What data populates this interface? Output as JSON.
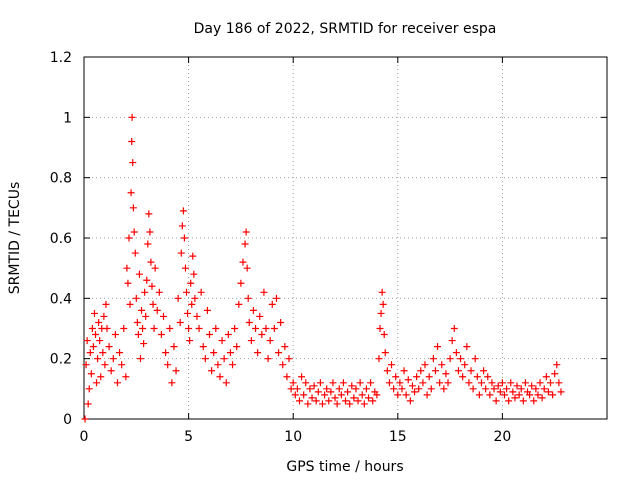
{
  "chart_data": {
    "type": "scatter",
    "title": "Day 186 of 2022, SRMTID for receiver espa",
    "xlabel": "GPS time / hours",
    "ylabel": "SRMTID / TECUs",
    "xlim": [
      0,
      25
    ],
    "ylim": [
      0,
      1.2
    ],
    "x_ticks": [
      0,
      5,
      10,
      15,
      20
    ],
    "x_tick_labels": [
      "0",
      "5",
      "10",
      "15",
      "20"
    ],
    "y_ticks": [
      0,
      0.2,
      0.4,
      0.6,
      0.8,
      1.0,
      1.2
    ],
    "y_tick_labels": [
      "0",
      "0.2",
      "0.4",
      "0.6",
      "0.8",
      "1",
      "1.2"
    ],
    "grid": true,
    "marker": "+",
    "series_color": "#ff0000",
    "series": [
      {
        "name": "SRMTID",
        "points": [
          [
            0.05,
            0.0
          ],
          [
            0.1,
            0.18
          ],
          [
            0.15,
            0.26
          ],
          [
            0.2,
            0.05
          ],
          [
            0.25,
            0.1
          ],
          [
            0.3,
            0.22
          ],
          [
            0.35,
            0.15
          ],
          [
            0.4,
            0.3
          ],
          [
            0.45,
            0.24
          ],
          [
            0.5,
            0.35
          ],
          [
            0.55,
            0.28
          ],
          [
            0.6,
            0.12
          ],
          [
            0.65,
            0.2
          ],
          [
            0.7,
            0.32
          ],
          [
            0.75,
            0.26
          ],
          [
            0.8,
            0.14
          ],
          [
            0.85,
            0.3
          ],
          [
            0.9,
            0.22
          ],
          [
            0.95,
            0.34
          ],
          [
            1.0,
            0.18
          ],
          [
            1.05,
            0.38
          ],
          [
            1.1,
            0.3
          ],
          [
            1.2,
            0.24
          ],
          [
            1.3,
            0.16
          ],
          [
            1.4,
            0.2
          ],
          [
            1.5,
            0.28
          ],
          [
            1.6,
            0.12
          ],
          [
            1.7,
            0.22
          ],
          [
            1.8,
            0.18
          ],
          [
            1.9,
            0.3
          ],
          [
            2.0,
            0.14
          ],
          [
            2.05,
            0.5
          ],
          [
            2.1,
            0.45
          ],
          [
            2.15,
            0.6
          ],
          [
            2.2,
            0.38
          ],
          [
            2.25,
            0.75
          ],
          [
            2.28,
            0.92
          ],
          [
            2.3,
            1.0
          ],
          [
            2.33,
            0.85
          ],
          [
            2.36,
            0.7
          ],
          [
            2.4,
            0.62
          ],
          [
            2.45,
            0.55
          ],
          [
            2.5,
            0.4
          ],
          [
            2.55,
            0.32
          ],
          [
            2.6,
            0.28
          ],
          [
            2.65,
            0.48
          ],
          [
            2.7,
            0.2
          ],
          [
            2.75,
            0.36
          ],
          [
            2.8,
            0.3
          ],
          [
            2.85,
            0.25
          ],
          [
            2.9,
            0.42
          ],
          [
            2.95,
            0.34
          ],
          [
            3.0,
            0.46
          ],
          [
            3.05,
            0.58
          ],
          [
            3.1,
            0.68
          ],
          [
            3.15,
            0.62
          ],
          [
            3.2,
            0.52
          ],
          [
            3.25,
            0.44
          ],
          [
            3.3,
            0.38
          ],
          [
            3.35,
            0.3
          ],
          [
            3.4,
            0.5
          ],
          [
            3.5,
            0.36
          ],
          [
            3.6,
            0.42
          ],
          [
            3.7,
            0.28
          ],
          [
            3.8,
            0.34
          ],
          [
            3.9,
            0.22
          ],
          [
            4.0,
            0.18
          ],
          [
            4.1,
            0.3
          ],
          [
            4.2,
            0.12
          ],
          [
            4.3,
            0.24
          ],
          [
            4.4,
            0.16
          ],
          [
            4.5,
            0.4
          ],
          [
            4.6,
            0.32
          ],
          [
            4.65,
            0.55
          ],
          [
            4.7,
            0.64
          ],
          [
            4.75,
            0.69
          ],
          [
            4.8,
            0.6
          ],
          [
            4.85,
            0.5
          ],
          [
            4.9,
            0.42
          ],
          [
            4.95,
            0.35
          ],
          [
            5.0,
            0.3
          ],
          [
            5.05,
            0.26
          ],
          [
            5.1,
            0.45
          ],
          [
            5.15,
            0.38
          ],
          [
            5.2,
            0.54
          ],
          [
            5.25,
            0.48
          ],
          [
            5.3,
            0.4
          ],
          [
            5.4,
            0.34
          ],
          [
            5.5,
            0.3
          ],
          [
            5.6,
            0.42
          ],
          [
            5.7,
            0.24
          ],
          [
            5.8,
            0.2
          ],
          [
            5.9,
            0.36
          ],
          [
            6.0,
            0.28
          ],
          [
            6.1,
            0.16
          ],
          [
            6.2,
            0.22
          ],
          [
            6.3,
            0.3
          ],
          [
            6.4,
            0.18
          ],
          [
            6.5,
            0.14
          ],
          [
            6.6,
            0.26
          ],
          [
            6.7,
            0.2
          ],
          [
            6.8,
            0.12
          ],
          [
            6.9,
            0.28
          ],
          [
            7.0,
            0.22
          ],
          [
            7.1,
            0.18
          ],
          [
            7.2,
            0.3
          ],
          [
            7.3,
            0.24
          ],
          [
            7.4,
            0.38
          ],
          [
            7.5,
            0.45
          ],
          [
            7.6,
            0.52
          ],
          [
            7.7,
            0.58
          ],
          [
            7.75,
            0.62
          ],
          [
            7.8,
            0.5
          ],
          [
            7.85,
            0.4
          ],
          [
            7.9,
            0.32
          ],
          [
            8.0,
            0.26
          ],
          [
            8.1,
            0.36
          ],
          [
            8.2,
            0.3
          ],
          [
            8.3,
            0.22
          ],
          [
            8.4,
            0.34
          ],
          [
            8.5,
            0.28
          ],
          [
            8.6,
            0.42
          ],
          [
            8.7,
            0.3
          ],
          [
            8.8,
            0.2
          ],
          [
            8.9,
            0.26
          ],
          [
            9.0,
            0.38
          ],
          [
            9.1,
            0.3
          ],
          [
            9.2,
            0.4
          ],
          [
            9.3,
            0.22
          ],
          [
            9.4,
            0.32
          ],
          [
            9.5,
            0.18
          ],
          [
            9.6,
            0.24
          ],
          [
            9.7,
            0.14
          ],
          [
            9.8,
            0.2
          ],
          [
            9.9,
            0.1
          ],
          [
            10.0,
            0.12
          ],
          [
            10.1,
            0.08
          ],
          [
            10.2,
            0.1
          ],
          [
            10.3,
            0.06
          ],
          [
            10.4,
            0.14
          ],
          [
            10.5,
            0.08
          ],
          [
            10.6,
            0.12
          ],
          [
            10.7,
            0.05
          ],
          [
            10.8,
            0.1
          ],
          [
            10.9,
            0.07
          ],
          [
            11.0,
            0.11
          ],
          [
            11.1,
            0.06
          ],
          [
            11.2,
            0.09
          ],
          [
            11.3,
            0.12
          ],
          [
            11.4,
            0.05
          ],
          [
            11.5,
            0.08
          ],
          [
            11.6,
            0.1
          ],
          [
            11.7,
            0.06
          ],
          [
            11.8,
            0.09
          ],
          [
            11.9,
            0.12
          ],
          [
            12.0,
            0.07
          ],
          [
            12.1,
            0.05
          ],
          [
            12.2,
            0.1
          ],
          [
            12.3,
            0.08
          ],
          [
            12.4,
            0.12
          ],
          [
            12.5,
            0.06
          ],
          [
            12.6,
            0.09
          ],
          [
            12.7,
            0.05
          ],
          [
            12.8,
            0.11
          ],
          [
            12.9,
            0.07
          ],
          [
            13.0,
            0.1
          ],
          [
            13.1,
            0.06
          ],
          [
            13.2,
            0.12
          ],
          [
            13.3,
            0.08
          ],
          [
            13.4,
            0.05
          ],
          [
            13.5,
            0.1
          ],
          [
            13.6,
            0.07
          ],
          [
            13.7,
            0.12
          ],
          [
            13.8,
            0.06
          ],
          [
            13.9,
            0.09
          ],
          [
            14.0,
            0.08
          ],
          [
            14.1,
            0.2
          ],
          [
            14.15,
            0.3
          ],
          [
            14.2,
            0.35
          ],
          [
            14.25,
            0.42
          ],
          [
            14.3,
            0.38
          ],
          [
            14.35,
            0.28
          ],
          [
            14.4,
            0.22
          ],
          [
            14.5,
            0.16
          ],
          [
            14.6,
            0.12
          ],
          [
            14.7,
            0.18
          ],
          [
            14.8,
            0.1
          ],
          [
            14.9,
            0.14
          ],
          [
            15.0,
            0.08
          ],
          [
            15.1,
            0.12
          ],
          [
            15.2,
            0.1
          ],
          [
            15.3,
            0.16
          ],
          [
            15.4,
            0.08
          ],
          [
            15.5,
            0.13
          ],
          [
            15.6,
            0.06
          ],
          [
            15.7,
            0.11
          ],
          [
            15.8,
            0.09
          ],
          [
            15.9,
            0.14
          ],
          [
            16.0,
            0.1
          ],
          [
            16.1,
            0.16
          ],
          [
            16.2,
            0.12
          ],
          [
            16.3,
            0.18
          ],
          [
            16.4,
            0.08
          ],
          [
            16.5,
            0.14
          ],
          [
            16.6,
            0.1
          ],
          [
            16.7,
            0.2
          ],
          [
            16.8,
            0.16
          ],
          [
            16.9,
            0.24
          ],
          [
            17.0,
            0.12
          ],
          [
            17.1,
            0.18
          ],
          [
            17.2,
            0.1
          ],
          [
            17.3,
            0.15
          ],
          [
            17.4,
            0.12
          ],
          [
            17.5,
            0.2
          ],
          [
            17.6,
            0.26
          ],
          [
            17.7,
            0.3
          ],
          [
            17.8,
            0.22
          ],
          [
            17.9,
            0.16
          ],
          [
            18.0,
            0.2
          ],
          [
            18.1,
            0.14
          ],
          [
            18.2,
            0.18
          ],
          [
            18.3,
            0.24
          ],
          [
            18.4,
            0.12
          ],
          [
            18.5,
            0.16
          ],
          [
            18.6,
            0.1
          ],
          [
            18.7,
            0.2
          ],
          [
            18.8,
            0.14
          ],
          [
            18.9,
            0.08
          ],
          [
            19.0,
            0.12
          ],
          [
            19.1,
            0.16
          ],
          [
            19.2,
            0.1
          ],
          [
            19.3,
            0.14
          ],
          [
            19.4,
            0.08
          ],
          [
            19.5,
            0.12
          ],
          [
            19.6,
            0.1
          ],
          [
            19.7,
            0.06
          ],
          [
            19.8,
            0.11
          ],
          [
            19.9,
            0.09
          ],
          [
            20.0,
            0.12
          ],
          [
            20.1,
            0.08
          ],
          [
            20.2,
            0.1
          ],
          [
            20.3,
            0.06
          ],
          [
            20.4,
            0.12
          ],
          [
            20.5,
            0.09
          ],
          [
            20.6,
            0.07
          ],
          [
            20.7,
            0.11
          ],
          [
            20.8,
            0.08
          ],
          [
            20.9,
            0.1
          ],
          [
            21.0,
            0.06
          ],
          [
            21.1,
            0.12
          ],
          [
            21.2,
            0.09
          ],
          [
            21.3,
            0.08
          ],
          [
            21.4,
            0.11
          ],
          [
            21.5,
            0.06
          ],
          [
            21.6,
            0.1
          ],
          [
            21.7,
            0.08
          ],
          [
            21.8,
            0.12
          ],
          [
            21.9,
            0.07
          ],
          [
            22.0,
            0.1
          ],
          [
            22.1,
            0.14
          ],
          [
            22.2,
            0.09
          ],
          [
            22.3,
            0.12
          ],
          [
            22.4,
            0.08
          ],
          [
            22.5,
            0.15
          ],
          [
            22.6,
            0.18
          ],
          [
            22.7,
            0.12
          ],
          [
            22.8,
            0.09
          ]
        ]
      }
    ]
  }
}
